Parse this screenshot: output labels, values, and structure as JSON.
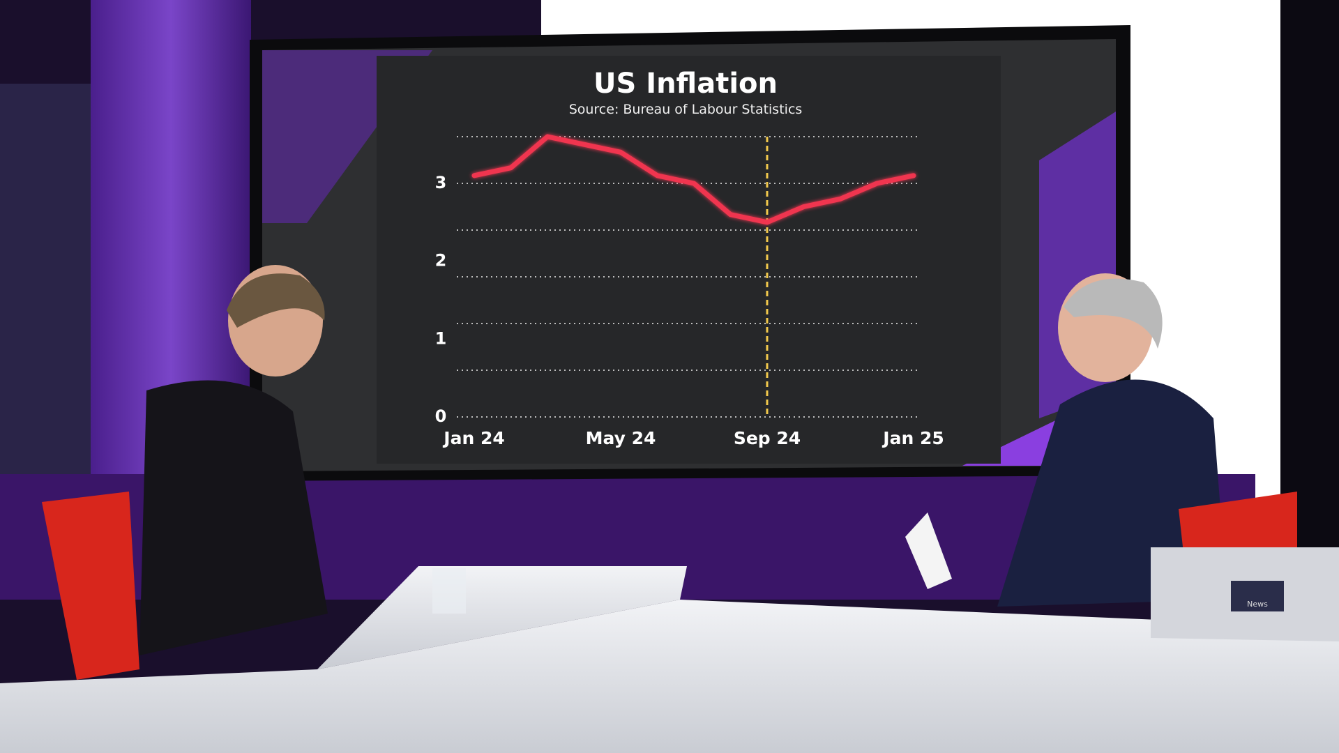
{
  "chart_data": {
    "type": "line",
    "title": "US Inflation",
    "subtitle": "Source: Bureau of Labour Statistics",
    "categories": [
      "Jan 24",
      null,
      null,
      null,
      "May 24",
      null,
      null,
      null,
      "Sep 24",
      null,
      null,
      null,
      "Jan 25"
    ],
    "series": [
      {
        "name": "US Inflation",
        "color": "#f0364f",
        "values": [
          3.1,
          3.2,
          3.6,
          3.5,
          3.4,
          3.1,
          3.0,
          2.6,
          2.5,
          2.7,
          2.8,
          3.0,
          3.1
        ]
      }
    ],
    "ylim": [
      0,
      3.6
    ],
    "yticks": [
      0,
      1,
      2,
      3
    ],
    "ygrid": [
      0,
      0.6,
      1.2,
      1.8,
      2.4,
      3,
      3.6
    ],
    "highlight": "Sep 24",
    "highlight_color": "#f2c94c"
  },
  "logo_text": "News"
}
